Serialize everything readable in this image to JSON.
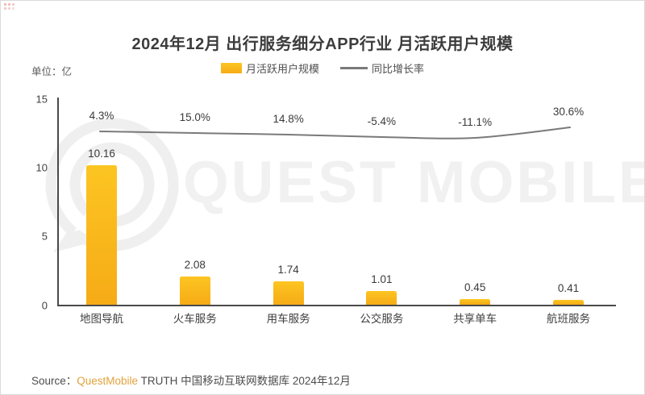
{
  "chart_data": {
    "type": "bar",
    "title": "2024年12月 出行服务细分APP行业 月活跃用户规模",
    "unit_label": "单位：亿",
    "categories": [
      "地图导航",
      "火车服务",
      "用车服务",
      "公交服务",
      "共享单车",
      "航班服务"
    ],
    "series": [
      {
        "name": "月活跃用户规模",
        "type": "bar",
        "unit": "亿",
        "values": [
          10.16,
          2.08,
          1.74,
          1.01,
          0.45,
          0.41
        ]
      },
      {
        "name": "同比增长率",
        "type": "line",
        "unit": "%",
        "values": [
          4.3,
          15.0,
          14.8,
          -5.4,
          -11.1,
          30.6
        ]
      }
    ],
    "ylim": [
      0,
      15
    ],
    "yticks": [
      0,
      5,
      10,
      15
    ],
    "grid": false,
    "legend_position": "top"
  },
  "watermark": {
    "text": "QUEST MOBILE",
    "logo": "questmobile-logo-icon"
  },
  "source": {
    "prefix": "Source：",
    "brand": "QuestMobile",
    "rest": " TRUTH 中国移动互联网数据库 2024年12月"
  },
  "colors": {
    "bar_top": "#FCC522",
    "bar_bottom": "#F6AB16",
    "line_gray": "#7A7A7A",
    "brand_orange": "#E2A23B",
    "axis": "#4A4A4A",
    "watermark_gray": "#F0F0F0"
  }
}
